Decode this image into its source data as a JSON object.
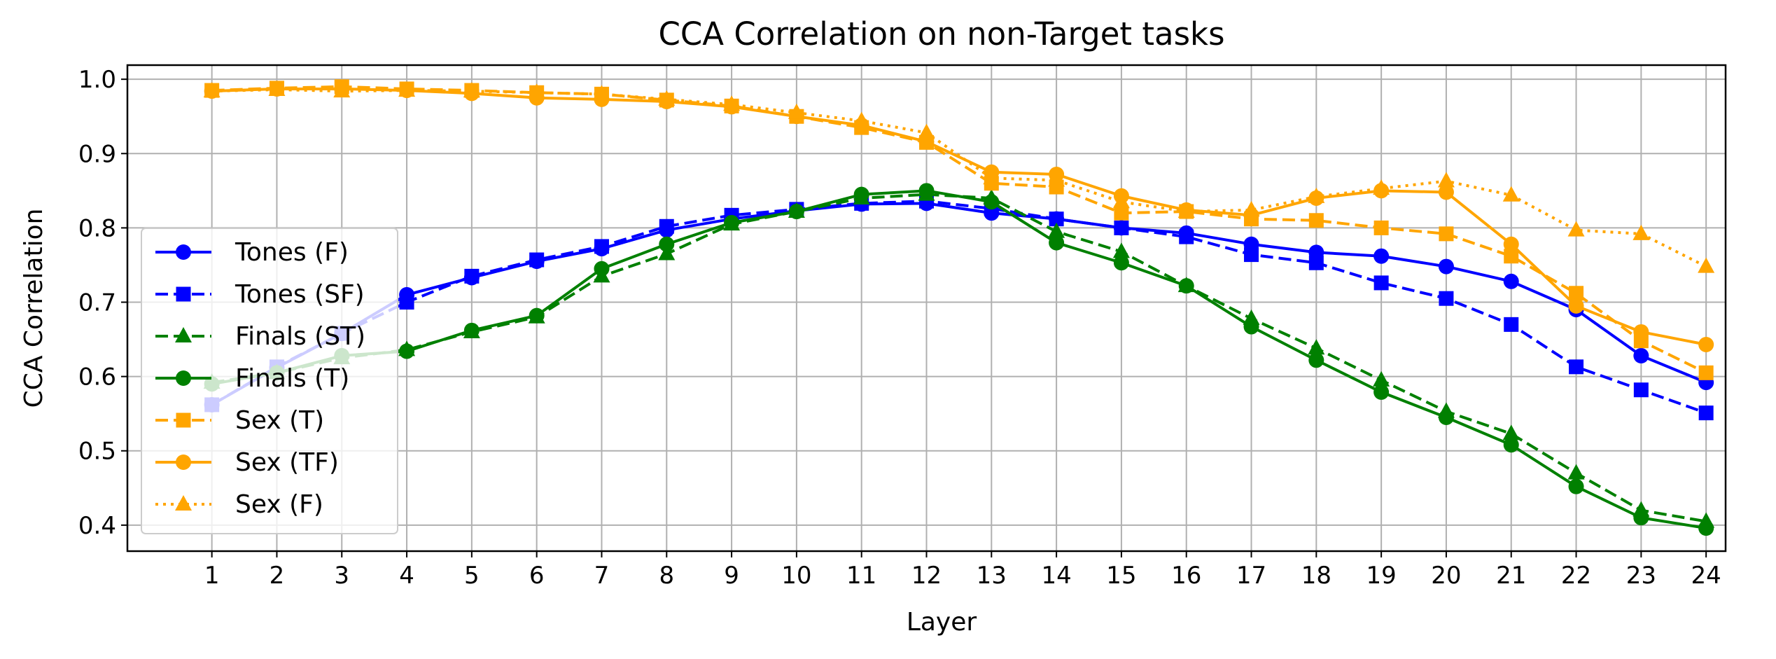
{
  "chart_data": {
    "type": "line",
    "title": "CCA Correlation on non-Target tasks",
    "xlabel": "Layer",
    "ylabel": "CCA Correlation",
    "x": [
      1,
      2,
      3,
      4,
      5,
      6,
      7,
      8,
      9,
      10,
      11,
      12,
      13,
      14,
      15,
      16,
      17,
      18,
      19,
      20,
      21,
      22,
      23,
      24
    ],
    "xticks": [
      "1",
      "2",
      "3",
      "4",
      "5",
      "6",
      "7",
      "8",
      "9",
      "10",
      "11",
      "12",
      "13",
      "14",
      "15",
      "16",
      "17",
      "18",
      "19",
      "20",
      "21",
      "22",
      "23",
      "24"
    ],
    "yticks": [
      "0.4",
      "0.5",
      "0.6",
      "0.7",
      "0.8",
      "0.9",
      "1.0"
    ],
    "ytick_values": [
      0.4,
      0.5,
      0.6,
      0.7,
      0.8,
      0.9,
      1.0
    ],
    "xlim": [
      -0.3,
      24.3
    ],
    "ylim": [
      0.365,
      1.019
    ],
    "grid": true,
    "legend_location": "center-left",
    "series": [
      {
        "name": "Tones (F)",
        "color": "#0000ff",
        "linestyle": "solid",
        "marker": "circle",
        "values": [
          0.562,
          0.612,
          0.658,
          0.71,
          0.733,
          0.755,
          0.772,
          0.797,
          0.812,
          0.823,
          0.832,
          0.833,
          0.82,
          0.812,
          0.8,
          0.793,
          0.778,
          0.767,
          0.762,
          0.748,
          0.728,
          0.69,
          0.628,
          0.592
        ]
      },
      {
        "name": "Tones (SF)",
        "color": "#0000ff",
        "linestyle": "dashed",
        "marker": "square",
        "values": [
          0.562,
          0.613,
          0.658,
          0.7,
          0.735,
          0.757,
          0.775,
          0.802,
          0.817,
          0.825,
          0.833,
          0.836,
          0.826,
          0.812,
          0.8,
          0.788,
          0.764,
          0.753,
          0.726,
          0.705,
          0.67,
          0.613,
          0.582,
          0.551
        ]
      },
      {
        "name": "Finals (ST)",
        "color": "#008000",
        "linestyle": "dashed",
        "marker": "triangle",
        "values": [
          0.592,
          0.605,
          0.625,
          0.636,
          0.66,
          0.68,
          0.735,
          0.765,
          0.805,
          0.822,
          0.84,
          0.845,
          0.84,
          0.795,
          0.768,
          0.722,
          0.678,
          0.638,
          0.595,
          0.553,
          0.523,
          0.47,
          0.42,
          0.405
        ]
      },
      {
        "name": "Finals (T)",
        "color": "#008000",
        "linestyle": "solid",
        "marker": "circle",
        "values": [
          0.59,
          0.605,
          0.628,
          0.634,
          0.662,
          0.682,
          0.745,
          0.778,
          0.807,
          0.822,
          0.845,
          0.85,
          0.835,
          0.78,
          0.753,
          0.722,
          0.667,
          0.622,
          0.579,
          0.545,
          0.508,
          0.452,
          0.41,
          0.396
        ]
      },
      {
        "name": "Sex (T)",
        "color": "#ffa500",
        "linestyle": "dashed",
        "marker": "square",
        "values": [
          0.985,
          0.988,
          0.99,
          0.987,
          0.985,
          0.982,
          0.98,
          0.972,
          0.964,
          0.95,
          0.935,
          0.915,
          0.86,
          0.855,
          0.82,
          0.822,
          0.812,
          0.81,
          0.8,
          0.792,
          0.762,
          0.712,
          0.648,
          0.605
        ]
      },
      {
        "name": "Sex (TF)",
        "color": "#ffa500",
        "linestyle": "solid",
        "marker": "circle",
        "values": [
          0.984,
          0.987,
          0.987,
          0.985,
          0.981,
          0.975,
          0.973,
          0.97,
          0.963,
          0.95,
          0.938,
          0.916,
          0.875,
          0.872,
          0.843,
          0.824,
          0.817,
          0.84,
          0.85,
          0.848,
          0.778,
          0.695,
          0.66,
          0.643
        ]
      },
      {
        "name": "Sex (F)",
        "color": "#ffa500",
        "linestyle": "dotted",
        "marker": "triangle",
        "values": [
          0.984,
          0.986,
          0.984,
          0.985,
          0.984,
          0.982,
          0.98,
          0.973,
          0.966,
          0.955,
          0.944,
          0.928,
          0.867,
          0.864,
          0.835,
          0.822,
          0.824,
          0.842,
          0.853,
          0.863,
          0.844,
          0.797,
          0.792,
          0.748
        ]
      }
    ]
  }
}
